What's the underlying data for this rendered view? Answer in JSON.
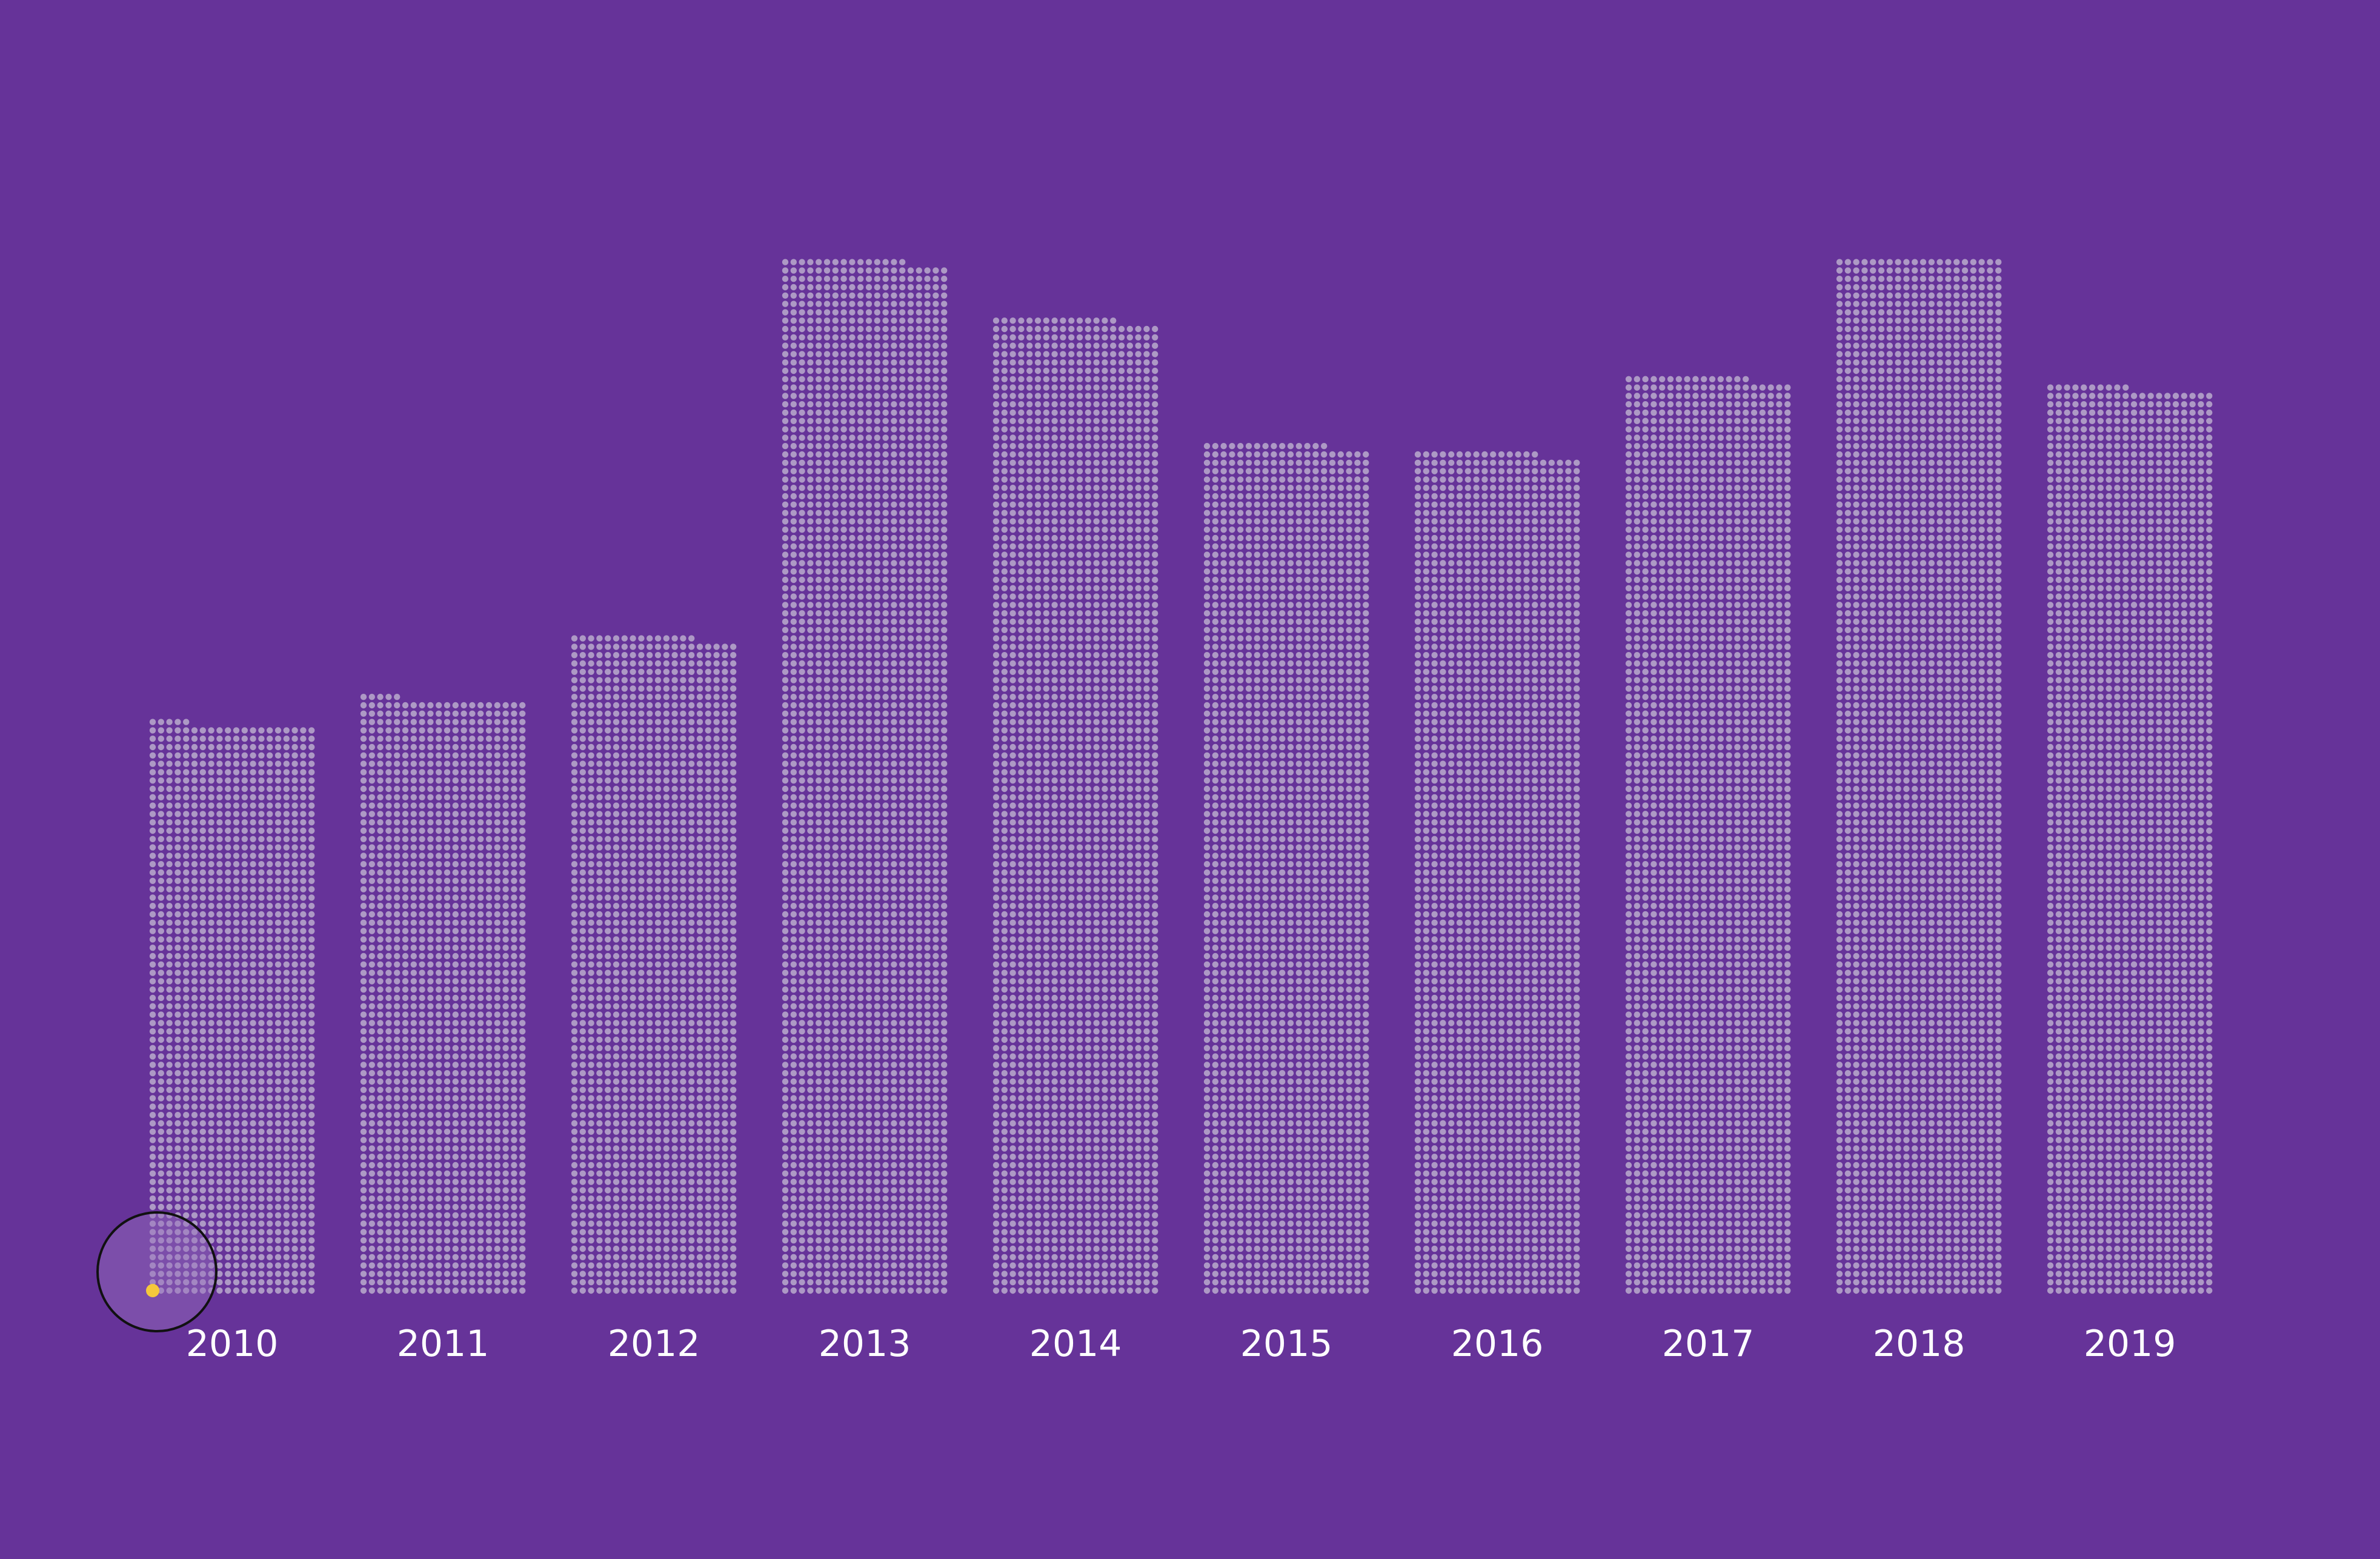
{
  "colors": {
    "background": "#663399",
    "dot": "#ad99c5",
    "label": "#ffffff",
    "highlight_dot": "#f5c83c",
    "highlight_ring": "#111111"
  },
  "chart_data": {
    "type": "bar",
    "style": "dot-grid",
    "title": "",
    "xlabel": "",
    "ylabel": "",
    "grid": false,
    "legend": "none",
    "categories": [
      "2010",
      "2011",
      "2012",
      "2013",
      "2014",
      "2015",
      "2016",
      "2017",
      "2018",
      "2019"
    ],
    "values": [
      1365,
      1425,
      1575,
      2475,
      2335,
      2035,
      2015,
      2195,
      2480,
      2170
    ],
    "units_per_dot": 1,
    "dots_per_row": 20,
    "highlight": {
      "category": "2010",
      "position": "first dot (bottom-left)"
    }
  }
}
